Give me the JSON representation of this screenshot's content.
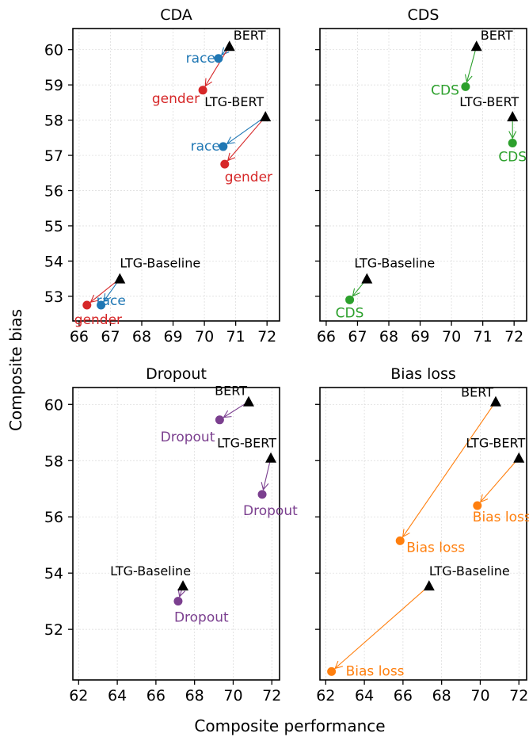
{
  "xlabel": "Composite performance",
  "ylabel": "Composite bias",
  "colors": {
    "race": "#1f77b4",
    "gender": "#d62728",
    "cds": "#2ca02c",
    "dropout": "#7b3f8f",
    "bias_loss": "#ff7f0e",
    "base": "#000000"
  },
  "chart_data": [
    {
      "type": "scatter",
      "title": "CDA",
      "xlim": [
        65.8,
        72.4
      ],
      "ylim": [
        52.3,
        60.6
      ],
      "xticks": [
        66,
        67,
        68,
        69,
        70,
        71,
        72
      ],
      "yticks": [
        53,
        54,
        55,
        56,
        57,
        58,
        59,
        60
      ],
      "grid": true,
      "base_models": [
        {
          "name": "BERT",
          "x": 70.8,
          "y": 60.1
        },
        {
          "name": "LTG-BERT",
          "x": 71.95,
          "y": 58.1
        },
        {
          "name": "LTG-Baseline",
          "x": 67.3,
          "y": 53.5
        }
      ],
      "debiased": [
        {
          "label": "race",
          "color_key": "race",
          "from": 0,
          "x": 70.45,
          "y": 59.75
        },
        {
          "label": "gender",
          "color_key": "gender",
          "from": 0,
          "x": 69.95,
          "y": 58.85
        },
        {
          "label": "race",
          "color_key": "race",
          "from": 1,
          "x": 70.6,
          "y": 57.25
        },
        {
          "label": "gender",
          "color_key": "gender",
          "from": 1,
          "x": 70.65,
          "y": 56.75
        },
        {
          "label": "race",
          "color_key": "race",
          "from": 2,
          "x": 66.7,
          "y": 52.75
        },
        {
          "label": "gender",
          "color_key": "gender",
          "from": 2,
          "x": 66.25,
          "y": 52.75
        }
      ]
    },
    {
      "type": "scatter",
      "title": "CDS",
      "xlim": [
        65.8,
        72.4
      ],
      "ylim": [
        52.3,
        60.6
      ],
      "xticks": [
        66,
        67,
        68,
        69,
        70,
        71,
        72
      ],
      "yticks": [
        53,
        54,
        55,
        56,
        57,
        58,
        59,
        60
      ],
      "grid": true,
      "base_models": [
        {
          "name": "BERT",
          "x": 70.8,
          "y": 60.1
        },
        {
          "name": "LTG-BERT",
          "x": 71.95,
          "y": 58.1
        },
        {
          "name": "LTG-Baseline",
          "x": 67.3,
          "y": 53.5
        }
      ],
      "debiased": [
        {
          "label": "CDS",
          "color_key": "cds",
          "from": 0,
          "x": 70.45,
          "y": 58.95
        },
        {
          "label": "CDS",
          "color_key": "cds",
          "from": 1,
          "x": 71.95,
          "y": 57.35
        },
        {
          "label": "CDS",
          "color_key": "cds",
          "from": 2,
          "x": 66.75,
          "y": 52.9
        }
      ]
    },
    {
      "type": "scatter",
      "title": "Dropout",
      "xlim": [
        61.7,
        72.4
      ],
      "ylim": [
        50.2,
        60.6
      ],
      "xticks": [
        62,
        64,
        66,
        68,
        70,
        72
      ],
      "yticks": [
        52,
        54,
        56,
        58,
        60
      ],
      "grid": true,
      "base_models": [
        {
          "name": "BERT",
          "x": 70.8,
          "y": 60.1
        },
        {
          "name": "LTG-BERT",
          "x": 71.95,
          "y": 58.1
        },
        {
          "name": "LTG-Baseline",
          "x": 67.4,
          "y": 53.55
        }
      ],
      "debiased": [
        {
          "label": "Dropout",
          "color_key": "dropout",
          "from": 0,
          "x": 69.3,
          "y": 59.45
        },
        {
          "label": "Dropout",
          "color_key": "dropout",
          "from": 1,
          "x": 71.5,
          "y": 56.8
        },
        {
          "label": "Dropout",
          "color_key": "dropout",
          "from": 2,
          "x": 67.15,
          "y": 53.0
        }
      ]
    },
    {
      "type": "scatter",
      "title": "Bias loss",
      "xlim": [
        61.7,
        72.4
      ],
      "ylim": [
        50.2,
        60.6
      ],
      "xticks": [
        62,
        64,
        66,
        68,
        70,
        72
      ],
      "yticks": [
        52,
        54,
        56,
        58,
        60
      ],
      "grid": true,
      "base_models": [
        {
          "name": "BERT",
          "x": 70.8,
          "y": 60.1
        },
        {
          "name": "LTG-BERT",
          "x": 72.0,
          "y": 58.1
        },
        {
          "name": "LTG-Baseline",
          "x": 67.35,
          "y": 53.55
        }
      ],
      "debiased": [
        {
          "label": "Bias loss",
          "color_key": "bias_loss",
          "from": 0,
          "x": 65.85,
          "y": 55.15
        },
        {
          "label": "Bias loss",
          "color_key": "bias_loss",
          "from": 1,
          "x": 69.85,
          "y": 56.4
        },
        {
          "label": "Bias loss",
          "color_key": "bias_loss",
          "from": 2,
          "x": 62.3,
          "y": 50.5
        }
      ]
    }
  ]
}
